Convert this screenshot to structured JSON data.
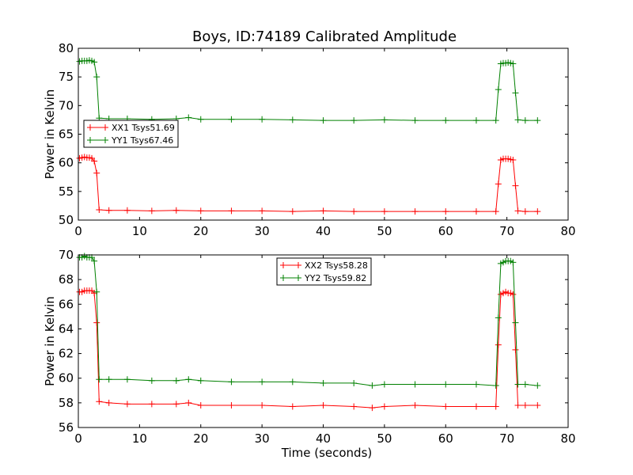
{
  "chart_data": [
    {
      "type": "line",
      "title": "Boys, ID:74189 Calibrated Amplitude",
      "xlabel": "",
      "ylabel": "Power in Kelvin",
      "xlim": [
        0,
        80
      ],
      "ylim": [
        50,
        80
      ],
      "xticks": [
        0,
        10,
        20,
        30,
        40,
        50,
        60,
        70,
        80
      ],
      "yticks": [
        50,
        55,
        60,
        65,
        70,
        75,
        80
      ],
      "legend_position": "center-left",
      "marker": "+",
      "series": [
        {
          "name": "XX1 Tsys51.69",
          "color": "#ff0000",
          "x": [
            0.2,
            0.6,
            1.0,
            1.4,
            1.8,
            2.2,
            2.6,
            3.0,
            3.4,
            5,
            8,
            12,
            16,
            20,
            25,
            30,
            35,
            40,
            45,
            50,
            55,
            60,
            65,
            68.2,
            68.6,
            69.0,
            69.4,
            69.8,
            70.2,
            70.6,
            71.0,
            71.4,
            71.8,
            73,
            75
          ],
          "y": [
            60.8,
            60.9,
            61.0,
            60.9,
            60.9,
            60.8,
            60.3,
            58.2,
            51.8,
            51.7,
            51.7,
            51.6,
            51.7,
            51.6,
            51.6,
            51.6,
            51.5,
            51.6,
            51.5,
            51.5,
            51.5,
            51.5,
            51.5,
            51.5,
            56.3,
            60.5,
            60.7,
            60.7,
            60.7,
            60.6,
            60.5,
            56.0,
            51.6,
            51.5,
            51.5
          ]
        },
        {
          "name": "YY1 Tsys67.46",
          "color": "#008000",
          "x": [
            0.2,
            0.6,
            1.0,
            1.4,
            1.8,
            2.2,
            2.6,
            3.0,
            3.4,
            5,
            8,
            12,
            16,
            18,
            20,
            25,
            30,
            35,
            40,
            45,
            50,
            55,
            60,
            65,
            68.2,
            68.6,
            69.0,
            69.4,
            69.8,
            70.2,
            70.6,
            71.0,
            71.4,
            71.8,
            73,
            75
          ],
          "y": [
            77.7,
            77.8,
            77.8,
            77.8,
            77.9,
            77.8,
            77.6,
            75.0,
            67.8,
            67.7,
            67.7,
            67.6,
            67.7,
            67.9,
            67.6,
            67.6,
            67.6,
            67.5,
            67.4,
            67.4,
            67.5,
            67.4,
            67.4,
            67.4,
            67.4,
            72.8,
            77.3,
            77.4,
            77.4,
            77.5,
            77.4,
            77.3,
            72.2,
            67.5,
            67.4,
            67.4
          ]
        }
      ]
    },
    {
      "type": "line",
      "title": "",
      "xlabel": "Time (seconds)",
      "ylabel": "Power in Kelvin",
      "xlim": [
        0,
        80
      ],
      "ylim": [
        56,
        70
      ],
      "xticks": [
        0,
        10,
        20,
        30,
        40,
        50,
        60,
        70,
        80
      ],
      "yticks": [
        56,
        58,
        60,
        62,
        64,
        66,
        68,
        70
      ],
      "legend_position": "upper-center",
      "marker": "+",
      "series": [
        {
          "name": "XX2 Tsys58.28",
          "color": "#ff0000",
          "x": [
            0.2,
            0.6,
            1.0,
            1.4,
            1.8,
            2.2,
            2.6,
            3.0,
            3.4,
            5,
            8,
            12,
            16,
            18,
            20,
            25,
            30,
            35,
            40,
            45,
            48,
            50,
            55,
            60,
            65,
            68.2,
            68.6,
            69.0,
            69.4,
            69.8,
            70.2,
            70.6,
            71.0,
            71.4,
            71.8,
            73,
            75
          ],
          "y": [
            67.0,
            67.0,
            67.1,
            67.1,
            67.1,
            67.1,
            66.9,
            64.5,
            58.1,
            58.0,
            57.9,
            57.9,
            57.9,
            58.0,
            57.8,
            57.8,
            57.8,
            57.7,
            57.8,
            57.7,
            57.6,
            57.7,
            57.8,
            57.7,
            57.7,
            57.7,
            62.7,
            66.8,
            66.9,
            67.0,
            66.9,
            66.9,
            66.8,
            62.3,
            57.8,
            57.8,
            57.8
          ]
        },
        {
          "name": "YY2 Tsys59.82",
          "color": "#008000",
          "x": [
            0.2,
            0.6,
            1.0,
            1.4,
            1.8,
            2.2,
            2.6,
            3.0,
            3.4,
            5,
            8,
            12,
            16,
            18,
            20,
            25,
            30,
            35,
            40,
            45,
            48,
            50,
            55,
            60,
            65,
            68.2,
            68.6,
            69.0,
            69.4,
            69.8,
            70.2,
            70.6,
            71.0,
            71.4,
            71.8,
            73,
            75
          ],
          "y": [
            69.8,
            69.8,
            69.9,
            69.8,
            69.8,
            69.8,
            69.5,
            67.0,
            59.9,
            59.9,
            59.9,
            59.8,
            59.8,
            59.9,
            59.8,
            59.7,
            59.7,
            59.7,
            59.6,
            59.6,
            59.4,
            59.5,
            59.5,
            59.5,
            59.5,
            59.4,
            64.9,
            69.3,
            69.4,
            69.5,
            69.5,
            69.5,
            69.4,
            64.5,
            59.5,
            59.5,
            59.4
          ]
        }
      ]
    }
  ]
}
